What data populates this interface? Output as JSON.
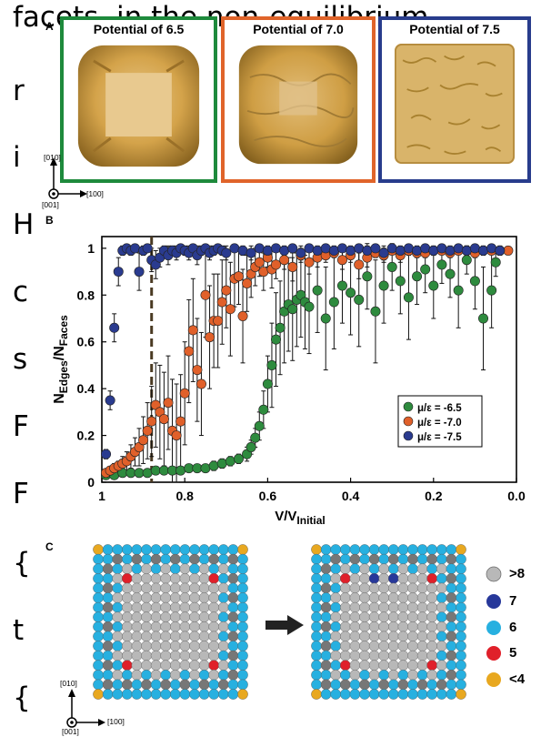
{
  "background_text": {
    "lines": [
      "facets, in the non-equilibrium",
      "r",
      "i",
      "H",
      "c",
      "s",
      "F",
      "F",
      "{",
      "t",
      "{"
    ]
  },
  "panel_a": {
    "label": "A",
    "tiles": [
      {
        "title": "Potential of 6.5",
        "border_color": "#1e8a3c"
      },
      {
        "title": "Potential of 7.0",
        "border_color": "#e0642a"
      },
      {
        "title": "Potential of 7.5",
        "border_color": "#283c8c"
      }
    ],
    "axes": {
      "up": "[010]",
      "right": "[100]",
      "out": "[001]"
    }
  },
  "panel_b": {
    "label": "B"
  },
  "chart_data": {
    "type": "scatter",
    "xlabel_main": "V/V",
    "xlabel_sub": "Initial",
    "ylabel_main": "N",
    "ylabel_sub1": "Edges",
    "ylabel_mid": "/N",
    "ylabel_sub2": "Faces",
    "x_ticks": [
      "1",
      "0.8",
      "0.6",
      "0.4",
      "0.2",
      "0.0"
    ],
    "y_ticks": [
      "0",
      "0.2",
      "0.4",
      "0.6",
      "0.8",
      "1"
    ],
    "xlim": [
      1.0,
      0.0
    ],
    "ylim": [
      0.0,
      1.05
    ],
    "x_reversed": true,
    "dashed_line_x": 0.88,
    "legend": [
      {
        "label": "μ/ε = -6.5",
        "color": "#2e8b3e"
      },
      {
        "label": "μ/ε = -7.0",
        "color": "#e0602a"
      },
      {
        "label": "μ/ε = -7.5",
        "color": "#2a3b8f"
      }
    ],
    "series": [
      {
        "name": "μ/ε = -6.5",
        "color": "#2e8b3e",
        "x": [
          0.99,
          0.97,
          0.95,
          0.93,
          0.91,
          0.89,
          0.87,
          0.85,
          0.83,
          0.81,
          0.79,
          0.77,
          0.75,
          0.73,
          0.71,
          0.69,
          0.67,
          0.65,
          0.64,
          0.63,
          0.62,
          0.61,
          0.6,
          0.59,
          0.58,
          0.57,
          0.56,
          0.55,
          0.54,
          0.53,
          0.52,
          0.51,
          0.5,
          0.48,
          0.46,
          0.44,
          0.42,
          0.4,
          0.38,
          0.36,
          0.34,
          0.32,
          0.3,
          0.28,
          0.26,
          0.24,
          0.22,
          0.2,
          0.18,
          0.16,
          0.14,
          0.12,
          0.1,
          0.08,
          0.06,
          0.05
        ],
        "y": [
          0.03,
          0.03,
          0.04,
          0.04,
          0.04,
          0.04,
          0.05,
          0.05,
          0.05,
          0.05,
          0.06,
          0.06,
          0.06,
          0.07,
          0.08,
          0.09,
          0.1,
          0.12,
          0.15,
          0.19,
          0.24,
          0.31,
          0.42,
          0.5,
          0.61,
          0.66,
          0.73,
          0.76,
          0.74,
          0.78,
          0.8,
          0.77,
          0.75,
          0.82,
          0.7,
          0.77,
          0.84,
          0.81,
          0.78,
          0.88,
          0.73,
          0.84,
          0.92,
          0.86,
          0.79,
          0.88,
          0.91,
          0.84,
          0.93,
          0.89,
          0.82,
          0.95,
          0.86,
          0.7,
          0.82,
          0.94
        ],
        "err": [
          0.01,
          0.01,
          0.01,
          0.01,
          0.01,
          0.01,
          0.01,
          0.01,
          0.01,
          0.01,
          0.01,
          0.01,
          0.01,
          0.02,
          0.02,
          0.02,
          0.02,
          0.03,
          0.03,
          0.04,
          0.06,
          0.08,
          0.12,
          0.18,
          0.2,
          0.2,
          0.22,
          0.2,
          0.22,
          0.2,
          0.18,
          0.2,
          0.2,
          0.18,
          0.22,
          0.2,
          0.16,
          0.18,
          0.2,
          0.14,
          0.22,
          0.16,
          0.1,
          0.14,
          0.18,
          0.12,
          0.1,
          0.14,
          0.08,
          0.1,
          0.16,
          0.06,
          0.12,
          0.22,
          0.16,
          0.06
        ]
      },
      {
        "name": "μ/ε = -7.0",
        "color": "#e0602a",
        "x": [
          0.99,
          0.98,
          0.97,
          0.96,
          0.95,
          0.94,
          0.93,
          0.92,
          0.91,
          0.9,
          0.89,
          0.88,
          0.87,
          0.86,
          0.85,
          0.84,
          0.83,
          0.82,
          0.81,
          0.8,
          0.79,
          0.78,
          0.77,
          0.76,
          0.75,
          0.74,
          0.73,
          0.72,
          0.71,
          0.7,
          0.69,
          0.68,
          0.67,
          0.66,
          0.65,
          0.64,
          0.63,
          0.62,
          0.61,
          0.6,
          0.59,
          0.58,
          0.56,
          0.54,
          0.52,
          0.5,
          0.48,
          0.46,
          0.44,
          0.42,
          0.4,
          0.38,
          0.36,
          0.34,
          0.32,
          0.3,
          0.28,
          0.26,
          0.24,
          0.22,
          0.2,
          0.18,
          0.16,
          0.14,
          0.12,
          0.1,
          0.08,
          0.06,
          0.04,
          0.02
        ],
        "y": [
          0.04,
          0.05,
          0.06,
          0.07,
          0.08,
          0.09,
          0.11,
          0.13,
          0.15,
          0.18,
          0.22,
          0.26,
          0.33,
          0.3,
          0.27,
          0.34,
          0.22,
          0.2,
          0.26,
          0.38,
          0.56,
          0.65,
          0.48,
          0.42,
          0.8,
          0.62,
          0.69,
          0.69,
          0.77,
          0.82,
          0.74,
          0.87,
          0.88,
          0.71,
          0.85,
          0.89,
          0.92,
          0.94,
          0.9,
          0.96,
          0.91,
          0.93,
          0.95,
          0.92,
          0.97,
          0.94,
          0.96,
          0.97,
          0.98,
          0.95,
          0.97,
          0.93,
          0.96,
          0.98,
          0.97,
          0.99,
          0.97,
          0.99,
          0.98,
          0.98,
          0.99,
          0.99,
          0.98,
          0.99,
          0.99,
          0.98,
          0.99,
          0.99,
          0.99,
          0.99
        ],
        "err": [
          0.01,
          0.01,
          0.02,
          0.02,
          0.03,
          0.04,
          0.05,
          0.06,
          0.08,
          0.1,
          0.12,
          0.15,
          0.18,
          0.2,
          0.2,
          0.2,
          0.22,
          0.22,
          0.2,
          0.22,
          0.22,
          0.22,
          0.22,
          0.22,
          0.18,
          0.22,
          0.2,
          0.2,
          0.18,
          0.16,
          0.2,
          0.12,
          0.12,
          0.2,
          0.12,
          0.1,
          0.08,
          0.06,
          0.08,
          0.04,
          0.08,
          0.06,
          0.04,
          0.06,
          0.03,
          0.05,
          0.04,
          0.03,
          0.02,
          0.04,
          0.03,
          0.06,
          0.04,
          0.02,
          0.03,
          0.01,
          0.03,
          0.01,
          0.02,
          0.02,
          0.01,
          0.01,
          0.02,
          0.01,
          0.01,
          0.02,
          0.01,
          0.01,
          0.01,
          0.01
        ]
      },
      {
        "name": "μ/ε = -7.5",
        "color": "#2a3b8f",
        "x": [
          0.99,
          0.98,
          0.97,
          0.96,
          0.95,
          0.94,
          0.93,
          0.92,
          0.91,
          0.9,
          0.89,
          0.88,
          0.87,
          0.86,
          0.85,
          0.84,
          0.83,
          0.82,
          0.81,
          0.8,
          0.79,
          0.78,
          0.77,
          0.76,
          0.75,
          0.74,
          0.73,
          0.72,
          0.71,
          0.7,
          0.68,
          0.66,
          0.64,
          0.62,
          0.6,
          0.58,
          0.56,
          0.54,
          0.52,
          0.5,
          0.48,
          0.46,
          0.44,
          0.42,
          0.4,
          0.38,
          0.36,
          0.34,
          0.32,
          0.3,
          0.28,
          0.26,
          0.24,
          0.22,
          0.2,
          0.18,
          0.16,
          0.14,
          0.12,
          0.1,
          0.08,
          0.06,
          0.04
        ],
        "y": [
          0.12,
          0.35,
          0.66,
          0.9,
          0.99,
          1.0,
          0.99,
          1.0,
          0.9,
          0.99,
          1.0,
          0.95,
          0.93,
          0.96,
          0.99,
          0.97,
          0.99,
          0.98,
          1.0,
          0.99,
          0.98,
          1.0,
          0.97,
          0.99,
          1.0,
          0.98,
          0.99,
          1.0,
          0.99,
          0.98,
          1.0,
          0.99,
          0.98,
          1.0,
          0.99,
          1.0,
          0.99,
          1.0,
          0.98,
          1.0,
          0.99,
          1.0,
          0.99,
          1.0,
          0.99,
          1.0,
          0.99,
          1.0,
          0.98,
          1.0,
          0.99,
          1.0,
          0.99,
          1.0,
          0.99,
          1.0,
          0.99,
          1.0,
          0.99,
          1.0,
          0.99,
          1.0,
          0.99
        ],
        "err": [
          0.02,
          0.04,
          0.06,
          0.06,
          0.02,
          0.01,
          0.02,
          0.01,
          0.08,
          0.02,
          0.01,
          0.05,
          0.06,
          0.04,
          0.02,
          0.04,
          0.02,
          0.03,
          0.01,
          0.02,
          0.03,
          0.01,
          0.04,
          0.02,
          0.01,
          0.03,
          0.02,
          0.01,
          0.02,
          0.03,
          0.01,
          0.02,
          0.03,
          0.01,
          0.02,
          0.01,
          0.02,
          0.01,
          0.03,
          0.01,
          0.02,
          0.01,
          0.02,
          0.01,
          0.02,
          0.01,
          0.02,
          0.01,
          0.03,
          0.01,
          0.02,
          0.01,
          0.02,
          0.01,
          0.02,
          0.01,
          0.02,
          0.01,
          0.02,
          0.01,
          0.02,
          0.01,
          0.02
        ]
      }
    ]
  },
  "panel_c": {
    "label": "C",
    "axes": {
      "up": "[010]",
      "right": "[100]",
      "out": "[001]"
    },
    "legend": [
      {
        "label": ">8",
        "color": "#b8b8b8"
      },
      {
        "label": "7",
        "color": "#27389a"
      },
      {
        "label": "6",
        "color": "#27b0e0"
      },
      {
        "label": "5",
        "color": "#e0202a"
      },
      {
        "label": "<4",
        "color": "#e8a820"
      }
    ]
  }
}
